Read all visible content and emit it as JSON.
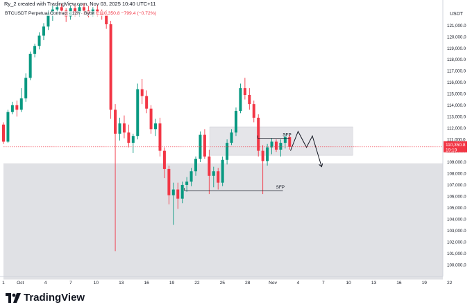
{
  "header": {
    "credit": "Ry_2 created with TradingView.com, Nov 03, 2025 10:40 UTC+11",
    "symbol": "BTCUSDT Perpetual Contract · 12h · Bybit",
    "ohlc": "C110,350.8 −799.4 (−0.72%)",
    "currency": "USDT"
  },
  "footer": {
    "brand": "TradingView"
  },
  "colors": {
    "up": "#089981",
    "down": "#f23645",
    "zone": "#e0e1e5",
    "text": "#131722"
  },
  "chart_data": {
    "type": "candlestick",
    "title": "",
    "ylim": [
      99000,
      122500
    ],
    "y_ticks": [
      "100,000.0",
      "101,000.0",
      "102,000.0",
      "103,000.0",
      "104,000.0",
      "105,000.0",
      "106,000.0",
      "107,000.0",
      "108,000.0",
      "109,000.0",
      "110,000.0",
      "111,000.0",
      "112,000.0",
      "113,000.0",
      "114,000.0",
      "115,000.0",
      "116,000.0",
      "117,000.0",
      "118,000.0",
      "119,000.0",
      "120,000.0",
      "121,000.0"
    ],
    "x_ticks": [
      "Oct",
      "4",
      "7",
      "10",
      "13",
      "16",
      "19",
      "22",
      "25",
      "28",
      "Nov",
      "4",
      "7",
      "10",
      "13",
      "16",
      "19",
      "22"
    ],
    "first_tick": "1",
    "x_range_days": [
      0,
      52.2
    ],
    "tick_days": [
      0,
      3,
      6,
      9,
      12,
      15,
      18,
      21,
      24,
      27,
      31,
      34,
      37,
      40,
      43,
      46,
      49,
      52
    ],
    "candles_ohlc": [
      [
        112300,
        112500,
        110600,
        110800
      ],
      [
        110800,
        113600,
        110700,
        113400
      ],
      [
        113400,
        114300,
        113200,
        114000
      ],
      [
        114000,
        114400,
        113000,
        113600
      ],
      [
        113600,
        115500,
        113400,
        114600
      ],
      [
        114600,
        116800,
        114300,
        116400
      ],
      [
        116400,
        118700,
        116200,
        118500
      ],
      [
        118500,
        119400,
        118200,
        119200
      ],
      [
        119200,
        120400,
        118900,
        120100
      ],
      [
        120100,
        121200,
        119700,
        120900
      ],
      [
        120900,
        122300,
        120600,
        122100
      ],
      [
        122100,
        122700,
        121400,
        122400
      ],
      [
        122400,
        122800,
        121900,
        122600
      ],
      [
        122600,
        122900,
        122000,
        122300
      ],
      [
        122300,
        122500,
        121300,
        121800
      ],
      [
        121800,
        122700,
        121500,
        122500
      ],
      [
        122500,
        122800,
        121800,
        122100
      ],
      [
        122100,
        122900,
        121800,
        122600
      ],
      [
        122600,
        122900,
        121900,
        122300
      ],
      [
        122300,
        122700,
        121700,
        122000
      ],
      [
        122000,
        122600,
        121800,
        122400
      ],
      [
        122400,
        122800,
        121800,
        122100
      ],
      [
        122100,
        122400,
        121500,
        121900
      ],
      [
        121900,
        122300,
        120700,
        121100
      ],
      [
        121100,
        121400,
        112800,
        113600
      ],
      [
        113600,
        114100,
        101200,
        111500
      ],
      [
        111500,
        112900,
        110900,
        112400
      ],
      [
        112400,
        113100,
        111100,
        111600
      ],
      [
        111600,
        112300,
        110300,
        110700
      ],
      [
        110700,
        111500,
        109800,
        111300
      ],
      [
        111300,
        115900,
        111000,
        115400
      ],
      [
        115400,
        116300,
        114100,
        114800
      ],
      [
        114800,
        115300,
        113300,
        113700
      ],
      [
        113700,
        114000,
        111500,
        111900
      ],
      [
        111900,
        112800,
        111300,
        112400
      ],
      [
        112400,
        112900,
        109500,
        110000
      ],
      [
        110000,
        110300,
        107600,
        108400
      ],
      [
        108400,
        108700,
        105300,
        106100
      ],
      [
        106100,
        107200,
        103500,
        106600
      ],
      [
        106600,
        107200,
        104900,
        105800
      ],
      [
        105800,
        107300,
        105400,
        107000
      ],
      [
        107000,
        107700,
        106400,
        107300
      ],
      [
        107300,
        108500,
        106900,
        108200
      ],
      [
        108200,
        109500,
        107800,
        109300
      ],
      [
        109300,
        111700,
        109000,
        111400
      ],
      [
        111400,
        111900,
        109300,
        109500
      ],
      [
        109500,
        110100,
        106200,
        107800
      ],
      [
        107800,
        108600,
        106800,
        108200
      ],
      [
        108200,
        108500,
        106600,
        107200
      ],
      [
        107200,
        109500,
        106900,
        109200
      ],
      [
        109200,
        111000,
        108800,
        110700
      ],
      [
        110700,
        111900,
        110500,
        111600
      ],
      [
        111600,
        113800,
        111300,
        113500
      ],
      [
        113500,
        115900,
        113300,
        115500
      ],
      [
        115500,
        116400,
        114500,
        114900
      ],
      [
        114900,
        115500,
        113600,
        114100
      ],
      [
        114100,
        114400,
        112500,
        112900
      ],
      [
        112900,
        113200,
        109500,
        110000
      ],
      [
        110000,
        110500,
        106200,
        109100
      ],
      [
        109100,
        110600,
        108700,
        110300
      ],
      [
        110300,
        111100,
        109700,
        110800
      ],
      [
        110800,
        111000,
        109900,
        110100
      ],
      [
        110100,
        111000,
        109500,
        110700
      ],
      [
        110700,
        111500,
        110200,
        111200
      ],
      [
        111200,
        111400,
        110100,
        110350
      ]
    ],
    "demand_zone": {
      "price_top": 108900,
      "price_bottom": 98700,
      "from_day": 0,
      "to_day": 52.2
    },
    "supply_zone": {
      "price_top": 112100,
      "price_bottom": 109600,
      "from_day": 24.5,
      "to_day": 41.5
    },
    "sfp_lines": [
      {
        "label": "SFP",
        "price": 111100,
        "from_day": 30.2,
        "to_day": 34.0
      },
      {
        "label": "SFP",
        "price": 106500,
        "from_day": 21.5,
        "to_day": 33.2
      }
    ],
    "projection": [
      {
        "day": 34.1,
        "price": 110000
      },
      {
        "day": 35.0,
        "price": 111700
      },
      {
        "day": 36.0,
        "price": 110300
      },
      {
        "day": 36.7,
        "price": 111300
      },
      {
        "day": 37.8,
        "price": 108600
      }
    ],
    "last_price": {
      "value": 110350.8,
      "label": "110,350.8",
      "sub": "19:19"
    }
  }
}
